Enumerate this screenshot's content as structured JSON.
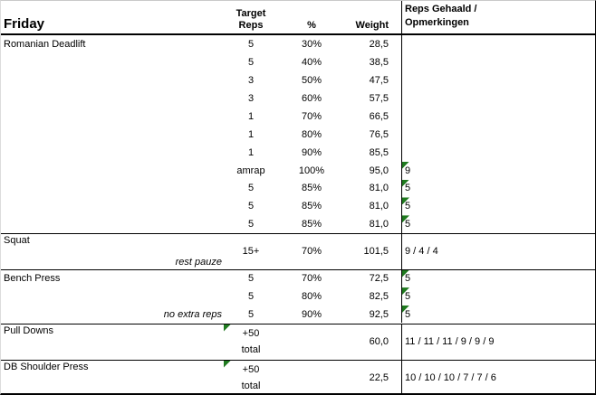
{
  "colors": {
    "flag_triangle": "#1F7A1F",
    "border": "#000000"
  },
  "table": {
    "header": {
      "day": "Friday",
      "target_line1": "Target",
      "target_line2": "Reps",
      "percent": "%",
      "weight": "Weight",
      "reps_line1": "Reps Gehaald /",
      "reps_line2": "Opmerkingen"
    },
    "romanian_deadlift": {
      "name": "Romanian Deadlift",
      "rows": [
        {
          "target": "5",
          "pct": "30%",
          "weight": "28,5",
          "reps": ""
        },
        {
          "target": "5",
          "pct": "40%",
          "weight": "38,5",
          "reps": ""
        },
        {
          "target": "3",
          "pct": "50%",
          "weight": "47,5",
          "reps": ""
        },
        {
          "target": "3",
          "pct": "60%",
          "weight": "57,5",
          "reps": ""
        },
        {
          "target": "1",
          "pct": "70%",
          "weight": "66,5",
          "reps": ""
        },
        {
          "target": "1",
          "pct": "80%",
          "weight": "76,5",
          "reps": ""
        },
        {
          "target": "1",
          "pct": "90%",
          "weight": "85,5",
          "reps": ""
        },
        {
          "target": "amrap",
          "pct": "100%",
          "weight": "95,0",
          "reps": "9"
        },
        {
          "target": "5",
          "pct": "85%",
          "weight": "81,0",
          "reps": "5"
        },
        {
          "target": "5",
          "pct": "85%",
          "weight": "81,0",
          "reps": "5"
        },
        {
          "target": "5",
          "pct": "85%",
          "weight": "81,0",
          "reps": "5"
        }
      ]
    },
    "squat": {
      "name": "Squat",
      "note": "rest pauze",
      "target": "15+",
      "pct": "70%",
      "weight": "101,5",
      "reps": "9 / 4 / 4"
    },
    "bench_press": {
      "name": "Bench Press",
      "rows": [
        {
          "note": "",
          "target": "5",
          "pct": "70%",
          "weight": "72,5",
          "reps": "5"
        },
        {
          "note": "",
          "target": "5",
          "pct": "80%",
          "weight": "82,5",
          "reps": "5"
        },
        {
          "note": "no extra reps",
          "target": "5",
          "pct": "90%",
          "weight": "92,5",
          "reps": "5"
        }
      ]
    },
    "pull_downs": {
      "name": "Pull Downs",
      "target_top": "+50",
      "target_bottom": "total",
      "weight": "60,0",
      "reps": "11 / 11 / 11 / 9 / 9 / 9"
    },
    "db_shoulder_press": {
      "name": "DB Shoulder Press",
      "target_top": "+50",
      "target_bottom": "total",
      "weight": "22,5",
      "reps": "10 / 10 / 10 / 7 / 7 / 6"
    }
  }
}
